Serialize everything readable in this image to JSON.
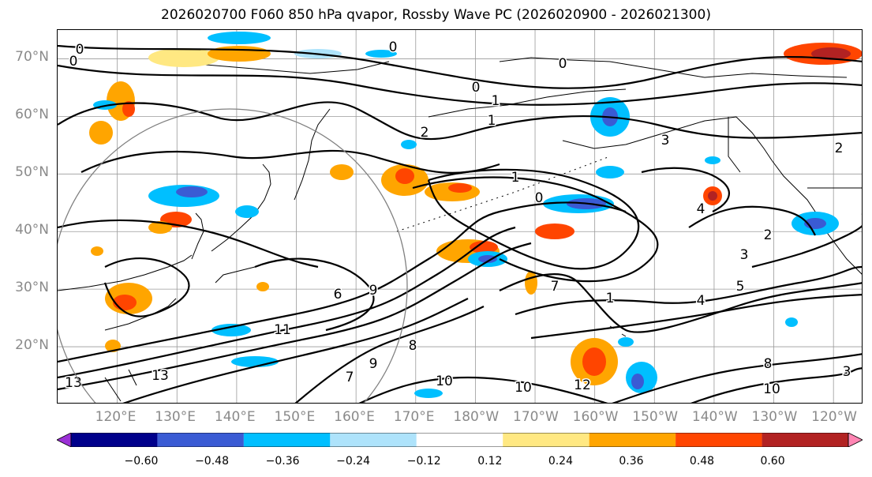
{
  "title": "2026020700 F060 850 hPa qvapor, Rossby Wave PC (2026020900 - 2026021300)",
  "lat_labels": [
    "70°N",
    "60°N",
    "50°N",
    "40°N",
    "30°N",
    "20°N"
  ],
  "lon_labels": [
    "120°E",
    "130°E",
    "140°E",
    "150°E",
    "160°E",
    "170°E",
    "180°W",
    "170°W",
    "160°W",
    "150°W",
    "140°W",
    "130°W",
    "120°W"
  ],
  "contour_labels": [
    "0",
    "0",
    "0",
    "0",
    "1",
    "2",
    "1",
    "0",
    "3",
    "2",
    "4",
    "2",
    "3",
    "5",
    "6",
    "4",
    "9",
    "1",
    "7",
    "8",
    "3",
    "11",
    "13",
    "13",
    "7",
    "10",
    "10",
    "12",
    "8",
    "9",
    "10",
    "0",
    "1"
  ],
  "colorbar": {
    "colors": [
      "#9b30d6",
      "#00008b",
      "#3a5bd4",
      "#00bfff",
      "#aee3fb",
      "#ffffff",
      "#ffe882",
      "#ffa500",
      "#ff4500",
      "#b22222",
      "#ff85b3"
    ],
    "ticks": [
      "−0.60",
      "−0.48",
      "−0.36",
      "−0.24",
      "−0.12",
      "0.12",
      "0.24",
      "0.36",
      "0.48",
      "0.60"
    ]
  },
  "axis": {
    "lon_min": 110,
    "lon_max": 245,
    "lat_min": 10,
    "lat_max": 75
  }
}
